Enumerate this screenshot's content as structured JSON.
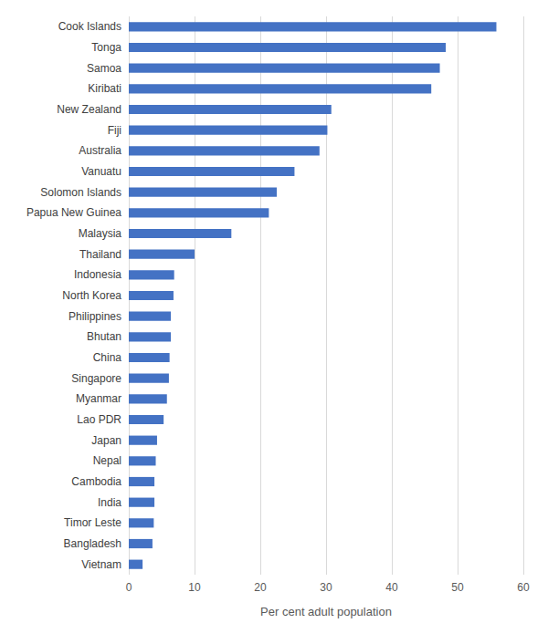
{
  "chart_data": {
    "type": "bar",
    "orientation": "horizontal",
    "x_label": "Per cent adult population",
    "categories": [
      "Cook Islands",
      "Tonga",
      "Samoa",
      "Kiribati",
      "New Zealand",
      "Fiji",
      "Australia",
      "Vanuatu",
      "Solomon Islands",
      "Papua New Guinea",
      "Malaysia",
      "Thailand",
      "Indonesia",
      "North Korea",
      "Philippines",
      "Bhutan",
      "China",
      "Singapore",
      "Myanmar",
      "Lao PDR",
      "Japan",
      "Nepal",
      "Cambodia",
      "India",
      "Timor Leste",
      "Bangladesh",
      "Vietnam"
    ],
    "values": [
      55.9,
      48.2,
      47.3,
      46.0,
      30.8,
      30.2,
      29.0,
      25.2,
      22.5,
      21.3,
      15.6,
      10.0,
      6.9,
      6.8,
      6.4,
      6.4,
      6.2,
      6.1,
      5.8,
      5.3,
      4.3,
      4.1,
      3.9,
      3.9,
      3.8,
      3.6,
      2.1
    ],
    "color": "#4472c4",
    "xlim": [
      0,
      60
    ],
    "xticks": [
      0,
      10,
      20,
      30,
      40,
      50,
      60
    ],
    "grid": true
  }
}
